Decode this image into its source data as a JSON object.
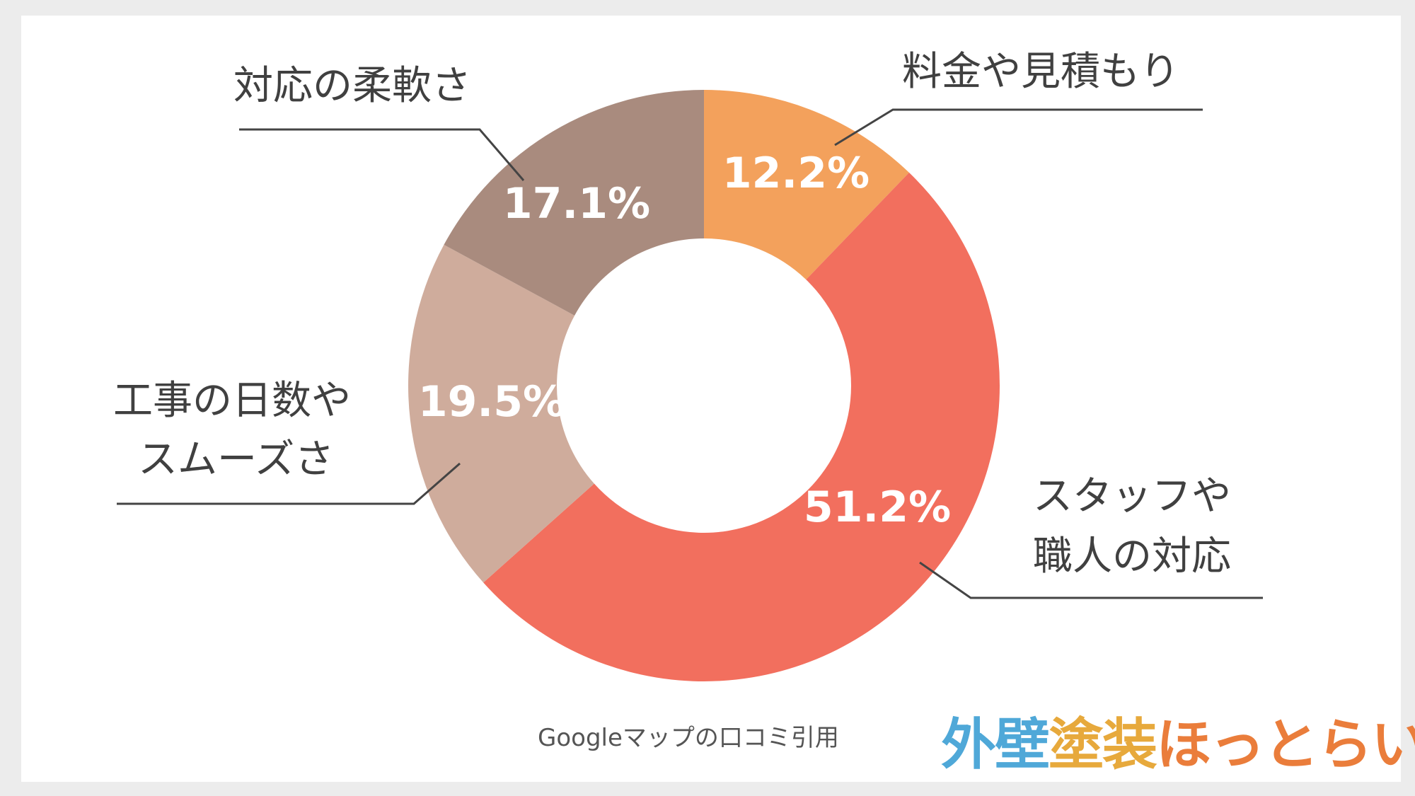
{
  "chart_data": {
    "type": "pie",
    "donut": true,
    "title": "",
    "slices": [
      {
        "label": "料金や見積もり",
        "value": 12.2,
        "value_label": "12.2%",
        "color": "#f3a15c"
      },
      {
        "label": "スタッフや\n職人の対応",
        "value": 51.2,
        "value_label": "51.2%",
        "color": "#f26f5e"
      },
      {
        "label": "工事の日数や\nスムーズさ",
        "value": 19.5,
        "value_label": "19.5%",
        "color": "#cfac9c"
      },
      {
        "label": "対応の柔軟さ",
        "value": 17.1,
        "value_label": "17.1%",
        "color": "#a98b7e"
      }
    ],
    "legend": "none",
    "start_angle_deg": 0,
    "direction": "clockwise"
  },
  "source_note": "Googleマップの口コミ引用",
  "logo": {
    "part1": "外壁",
    "part2": "塗装",
    "part3": "ほっとらいん",
    "colors": [
      "#4fa8d8",
      "#e7a93c",
      "#ea7d3b"
    ]
  }
}
